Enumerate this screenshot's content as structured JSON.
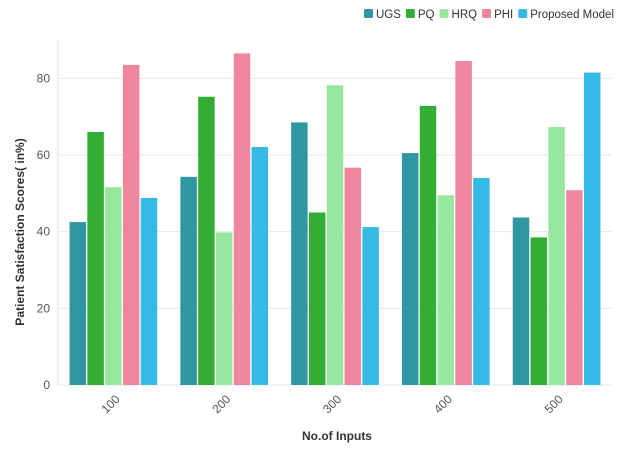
{
  "chart_data": {
    "type": "bar",
    "categories": [
      "100",
      "200",
      "300",
      "400",
      "500"
    ],
    "series": [
      {
        "name": "UGS",
        "color": "#3097a2",
        "values": [
          42.5,
          54.3,
          68.5,
          60.5,
          43.7
        ]
      },
      {
        "name": "PQ",
        "color": "#33ad33",
        "values": [
          66.0,
          75.2,
          45.0,
          72.8,
          38.5
        ]
      },
      {
        "name": "HRQ",
        "color": "#97e89e",
        "values": [
          51.6,
          39.8,
          78.2,
          49.5,
          67.3
        ]
      },
      {
        "name": "PHI",
        "color": "#f0869e",
        "values": [
          83.5,
          86.5,
          56.7,
          84.5,
          50.8
        ]
      },
      {
        "name": "Proposed Model",
        "color": "#35bae6",
        "values": [
          48.8,
          62.1,
          41.2,
          54.0,
          81.5
        ]
      }
    ],
    "title": "",
    "xlabel": "No.of Inputs",
    "ylabel": "Patient Satisfaction Scores( in%)",
    "ylim": [
      0,
      90
    ],
    "yticks": [
      0,
      20,
      40,
      60,
      80
    ],
    "grid": true,
    "legend_position": "top-right"
  }
}
